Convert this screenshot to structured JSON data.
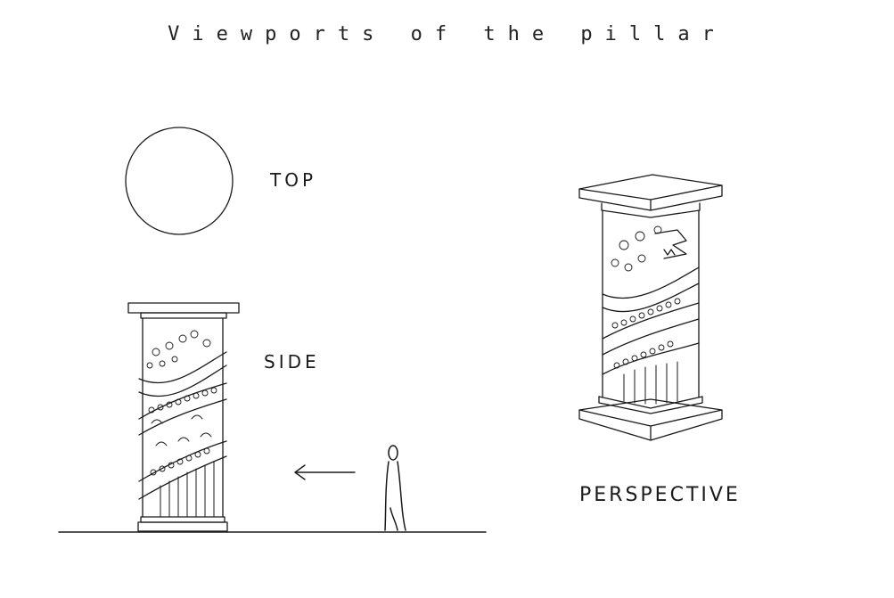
{
  "title": "Viewports of the pillar",
  "views": {
    "top": "TOP",
    "side": "SIDE",
    "perspective": "PERSPECTIVE"
  }
}
